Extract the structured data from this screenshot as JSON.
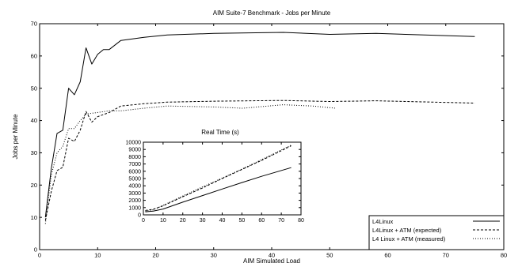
{
  "chart_data": [
    {
      "type": "line",
      "title": "AIM Suite-7 Benchmark - Jobs per Minute",
      "xlabel": "AIM Simulated Load",
      "ylabel": "Jobs per Minute",
      "xlim": [
        0,
        80
      ],
      "ylim": [
        0,
        70
      ],
      "xticks": [
        0,
        10,
        20,
        30,
        40,
        50,
        60,
        70,
        80
      ],
      "yticks": [
        0,
        10,
        20,
        30,
        40,
        50,
        60,
        70
      ],
      "grid": false,
      "legend_position": "bottom-right",
      "series": [
        {
          "name": "L4Linux",
          "style": "solid",
          "x": [
            1,
            2,
            3,
            4,
            5,
            6,
            7,
            8,
            9,
            10,
            11,
            12,
            14,
            18,
            22,
            30,
            42,
            50,
            58,
            75
          ],
          "y": [
            10,
            25,
            36,
            37,
            50,
            48,
            52,
            62.5,
            57.5,
            60.5,
            62,
            62,
            64.8,
            65.8,
            66.5,
            67,
            67.3,
            66.7,
            67,
            66
          ]
        },
        {
          "name": "L4Linux + ATM (expected)",
          "style": "dashed",
          "x": [
            1,
            2,
            3,
            4,
            5,
            6,
            7,
            8,
            9,
            10,
            12,
            14,
            18,
            22,
            30,
            42,
            50,
            58,
            75
          ],
          "y": [
            9,
            18,
            24.5,
            25.5,
            34.5,
            33.5,
            37,
            42.8,
            39.5,
            41.2,
            42.5,
            44.5,
            45.2,
            45.7,
            46,
            46.2,
            45.9,
            46.1,
            45.4
          ]
        },
        {
          "name": "L4 Linux + ATM (measured)",
          "style": "dotted",
          "x": [
            1,
            2,
            3,
            4,
            5,
            6,
            7,
            8,
            10,
            12,
            14,
            18,
            22,
            30,
            35,
            42,
            47,
            51
          ],
          "y": [
            8,
            23,
            30,
            32,
            37.5,
            37.5,
            40,
            42,
            42.5,
            43,
            43,
            43.8,
            44.5,
            44.2,
            43.8,
            44.9,
            44.5,
            43.8
          ]
        }
      ]
    },
    {
      "type": "line",
      "title": "Real Time (s)",
      "xlabel": "",
      "ylabel": "",
      "xlim": [
        0,
        80
      ],
      "ylim": [
        0,
        10000
      ],
      "xticks": [
        0,
        10,
        20,
        30,
        40,
        50,
        60,
        70,
        80
      ],
      "yticks": [
        0,
        1000,
        2000,
        3000,
        4000,
        5000,
        6000,
        7000,
        8000,
        9000,
        10000
      ],
      "grid": false,
      "series": [
        {
          "name": "L4Linux",
          "style": "solid",
          "x": [
            1,
            2,
            5,
            10,
            20,
            30,
            40,
            50,
            60,
            75
          ],
          "y": [
            400,
            450,
            520,
            800,
            1750,
            2650,
            3550,
            4450,
            5300,
            6500
          ]
        },
        {
          "name": "L4Linux + ATM (expected)",
          "style": "dashed",
          "x": [
            1,
            2,
            5,
            10,
            20,
            30,
            40,
            50,
            60,
            75
          ],
          "y": [
            600,
            650,
            760,
            1250,
            2500,
            3700,
            5000,
            6250,
            7500,
            9500
          ]
        },
        {
          "name": "L4 Linux + ATM (measured)",
          "style": "dotted",
          "x": [
            1,
            2,
            5,
            10,
            20,
            30,
            40,
            50,
            60,
            75
          ],
          "y": [
            500,
            560,
            700,
            1300,
            2600,
            3850,
            5050,
            6300,
            7600,
            9600
          ]
        }
      ]
    }
  ]
}
